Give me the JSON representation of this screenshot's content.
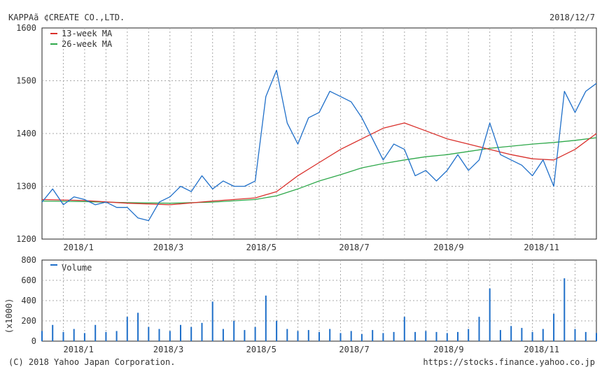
{
  "header": {
    "title": "KAPPAã ¢CREATE CO.,LTD.",
    "date": "2018/12/7"
  },
  "footer": {
    "copyright": "(C) 2018 Yahoo Japan Corporation.",
    "source": "https://stocks.finance.yahoo.co.jp"
  },
  "colors": {
    "price": "#1f6fc9",
    "ma13": "#d9302b",
    "ma26": "#2ea84a",
    "volume": "#1f6fc9",
    "grid": "#a8a8a8"
  },
  "chart_data": [
    {
      "type": "line",
      "x_range": [
        "2017-12-08",
        "2018-12-07"
      ],
      "x_tick_labels": [
        "2018/1",
        "2018/3",
        "2018/5",
        "2018/7",
        "2018/9",
        "2018/11"
      ],
      "x_tick_dates": [
        "2018-01-01",
        "2018-03-01",
        "2018-05-01",
        "2018-07-01",
        "2018-09-01",
        "2018-11-01"
      ],
      "ylim": [
        1200,
        1600
      ],
      "y_ticks": [
        1200,
        1300,
        1400,
        1500,
        1600
      ],
      "grid": true,
      "legend_position": "top-left",
      "series": [
        {
          "name": "",
          "x": [
            "2017-12-08",
            "2017-12-15",
            "2017-12-22",
            "2017-12-29",
            "2018-01-05",
            "2018-01-12",
            "2018-01-19",
            "2018-01-26",
            "2018-02-02",
            "2018-02-09",
            "2018-02-16",
            "2018-02-23",
            "2018-03-02",
            "2018-03-09",
            "2018-03-16",
            "2018-03-23",
            "2018-03-30",
            "2018-04-06",
            "2018-04-13",
            "2018-04-20",
            "2018-04-27",
            "2018-05-04",
            "2018-05-11",
            "2018-05-18",
            "2018-05-25",
            "2018-06-01",
            "2018-06-08",
            "2018-06-15",
            "2018-06-22",
            "2018-06-29",
            "2018-07-06",
            "2018-07-13",
            "2018-07-20",
            "2018-07-27",
            "2018-08-03",
            "2018-08-10",
            "2018-08-17",
            "2018-08-24",
            "2018-08-31",
            "2018-09-07",
            "2018-09-14",
            "2018-09-21",
            "2018-09-28",
            "2018-10-05",
            "2018-10-12",
            "2018-10-19",
            "2018-10-26",
            "2018-11-02",
            "2018-11-09",
            "2018-11-16",
            "2018-11-23",
            "2018-11-30",
            "2018-12-07"
          ],
          "y": [
            1270,
            1295,
            1265,
            1280,
            1275,
            1265,
            1270,
            1260,
            1260,
            1240,
            1235,
            1270,
            1280,
            1300,
            1290,
            1320,
            1295,
            1310,
            1300,
            1300,
            1310,
            1470,
            1520,
            1420,
            1380,
            1430,
            1440,
            1480,
            1470,
            1460,
            1430,
            1390,
            1350,
            1380,
            1370,
            1320,
            1330,
            1310,
            1330,
            1360,
            1330,
            1350,
            1420,
            1360,
            1350,
            1340,
            1320,
            1350,
            1300,
            1480,
            1440,
            1480,
            1495
          ]
        },
        {
          "name": "13-week MA",
          "x": [
            "2017-12-08",
            "2018-01-05",
            "2018-02-02",
            "2018-03-02",
            "2018-03-30",
            "2018-04-27",
            "2018-05-11",
            "2018-05-25",
            "2018-06-08",
            "2018-06-22",
            "2018-07-06",
            "2018-07-20",
            "2018-08-03",
            "2018-08-17",
            "2018-08-31",
            "2018-09-14",
            "2018-09-28",
            "2018-10-12",
            "2018-10-26",
            "2018-11-09",
            "2018-11-23",
            "2018-12-07"
          ],
          "y": [
            1275,
            1273,
            1268,
            1265,
            1272,
            1278,
            1290,
            1320,
            1345,
            1370,
            1390,
            1410,
            1420,
            1405,
            1390,
            1380,
            1370,
            1360,
            1352,
            1350,
            1370,
            1400
          ]
        },
        {
          "name": "26-week MA",
          "x": [
            "2017-12-08",
            "2018-01-05",
            "2018-02-02",
            "2018-03-02",
            "2018-03-30",
            "2018-04-27",
            "2018-05-11",
            "2018-05-25",
            "2018-06-08",
            "2018-06-22",
            "2018-07-06",
            "2018-07-20",
            "2018-08-03",
            "2018-08-17",
            "2018-08-31",
            "2018-09-14",
            "2018-09-28",
            "2018-10-12",
            "2018-10-26",
            "2018-11-09",
            "2018-11-23",
            "2018-12-07"
          ],
          "y": [
            1272,
            1271,
            1269,
            1268,
            1270,
            1275,
            1282,
            1295,
            1310,
            1322,
            1335,
            1343,
            1350,
            1356,
            1360,
            1366,
            1372,
            1376,
            1380,
            1383,
            1387,
            1392
          ]
        }
      ]
    },
    {
      "type": "bar",
      "x_range": [
        "2017-12-08",
        "2018-12-07"
      ],
      "x_tick_labels": [
        "2018/1",
        "2018/3",
        "2018/5",
        "2018/7",
        "2018/9",
        "2018/11"
      ],
      "x_tick_dates": [
        "2018-01-01",
        "2018-03-01",
        "2018-05-01",
        "2018-07-01",
        "2018-09-01",
        "2018-11-01"
      ],
      "ylim": [
        0,
        800
      ],
      "y_ticks": [
        0,
        200,
        400,
        600,
        800
      ],
      "ylabel": "(x1000)",
      "grid": true,
      "legend_position": "top-left",
      "series": [
        {
          "name": "Volume",
          "x": [
            "2017-12-08",
            "2017-12-15",
            "2017-12-22",
            "2017-12-29",
            "2018-01-05",
            "2018-01-12",
            "2018-01-19",
            "2018-01-26",
            "2018-02-02",
            "2018-02-09",
            "2018-02-16",
            "2018-02-23",
            "2018-03-02",
            "2018-03-09",
            "2018-03-16",
            "2018-03-23",
            "2018-03-30",
            "2018-04-06",
            "2018-04-13",
            "2018-04-20",
            "2018-04-27",
            "2018-05-04",
            "2018-05-11",
            "2018-05-18",
            "2018-05-25",
            "2018-06-01",
            "2018-06-08",
            "2018-06-15",
            "2018-06-22",
            "2018-06-29",
            "2018-07-06",
            "2018-07-13",
            "2018-07-20",
            "2018-07-27",
            "2018-08-03",
            "2018-08-10",
            "2018-08-17",
            "2018-08-24",
            "2018-08-31",
            "2018-09-07",
            "2018-09-14",
            "2018-09-21",
            "2018-09-28",
            "2018-10-05",
            "2018-10-12",
            "2018-10-19",
            "2018-10-26",
            "2018-11-02",
            "2018-11-09",
            "2018-11-16",
            "2018-11-23",
            "2018-11-30",
            "2018-12-07"
          ],
          "values": [
            100,
            160,
            90,
            120,
            80,
            160,
            90,
            100,
            240,
            280,
            140,
            120,
            100,
            160,
            140,
            180,
            390,
            120,
            200,
            110,
            140,
            450,
            200,
            120,
            100,
            110,
            90,
            120,
            80,
            100,
            70,
            110,
            80,
            90,
            240,
            90,
            100,
            90,
            80,
            90,
            120,
            240,
            520,
            110,
            150,
            130,
            90,
            120,
            270,
            620,
            120,
            90,
            80
          ]
        }
      ]
    }
  ]
}
